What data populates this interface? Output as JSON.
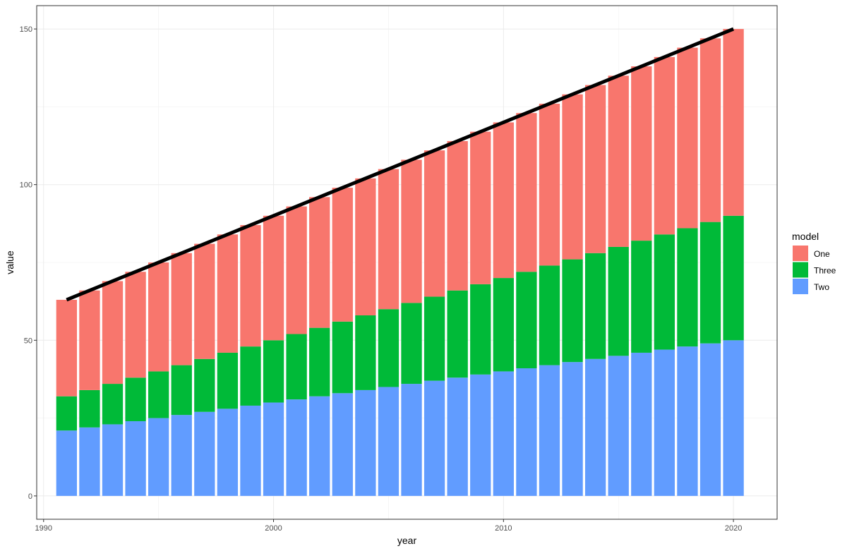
{
  "chart_data": {
    "type": "bar",
    "stacked": true,
    "x": [
      1991,
      1992,
      1993,
      1994,
      1995,
      1996,
      1997,
      1998,
      1999,
      2000,
      2001,
      2002,
      2003,
      2004,
      2005,
      2006,
      2007,
      2008,
      2009,
      2010,
      2011,
      2012,
      2013,
      2014,
      2015,
      2016,
      2017,
      2018,
      2019,
      2020
    ],
    "series": [
      {
        "name": "Two",
        "color": "#619CFF",
        "values": [
          21,
          22,
          23,
          24,
          25,
          26,
          27,
          28,
          29,
          30,
          31,
          32,
          33,
          34,
          35,
          36,
          37,
          38,
          39,
          40,
          41,
          42,
          43,
          44,
          45,
          46,
          47,
          48,
          49,
          50
        ]
      },
      {
        "name": "Three",
        "color": "#00BA38",
        "values": [
          11,
          12,
          13,
          14,
          15,
          16,
          17,
          18,
          19,
          20,
          21,
          22,
          23,
          24,
          25,
          26,
          27,
          28,
          29,
          30,
          31,
          32,
          33,
          34,
          35,
          36,
          37,
          38,
          39,
          40
        ]
      },
      {
        "name": "One",
        "color": "#F8766D",
        "values": [
          31,
          32,
          33,
          34,
          35,
          36,
          37,
          38,
          39,
          40,
          41,
          42,
          43,
          44,
          45,
          46,
          47,
          48,
          49,
          50,
          51,
          52,
          53,
          54,
          55,
          56,
          57,
          58,
          59,
          60
        ]
      }
    ],
    "line": {
      "color": "#000000",
      "values": [
        63,
        66,
        69,
        72,
        75,
        78,
        81,
        84,
        87,
        90,
        93,
        96,
        99,
        102,
        105,
        108,
        111,
        114,
        117,
        120,
        123,
        126,
        129,
        132,
        135,
        138,
        141,
        144,
        147,
        150
      ]
    },
    "xlabel": "year",
    "ylabel": "value",
    "xlim": [
      1989.7,
      2021.9
    ],
    "ylim": [
      -7.5,
      157.5
    ],
    "x_ticks": [
      1990,
      2000,
      2010,
      2020
    ],
    "y_ticks": [
      0,
      50,
      100,
      150
    ],
    "grid": true,
    "legend": {
      "title": "model",
      "position": "right",
      "entries": [
        {
          "label": "One",
          "color": "#F8766D"
        },
        {
          "label": "Three",
          "color": "#00BA38"
        },
        {
          "label": "Two",
          "color": "#619CFF"
        }
      ]
    }
  }
}
